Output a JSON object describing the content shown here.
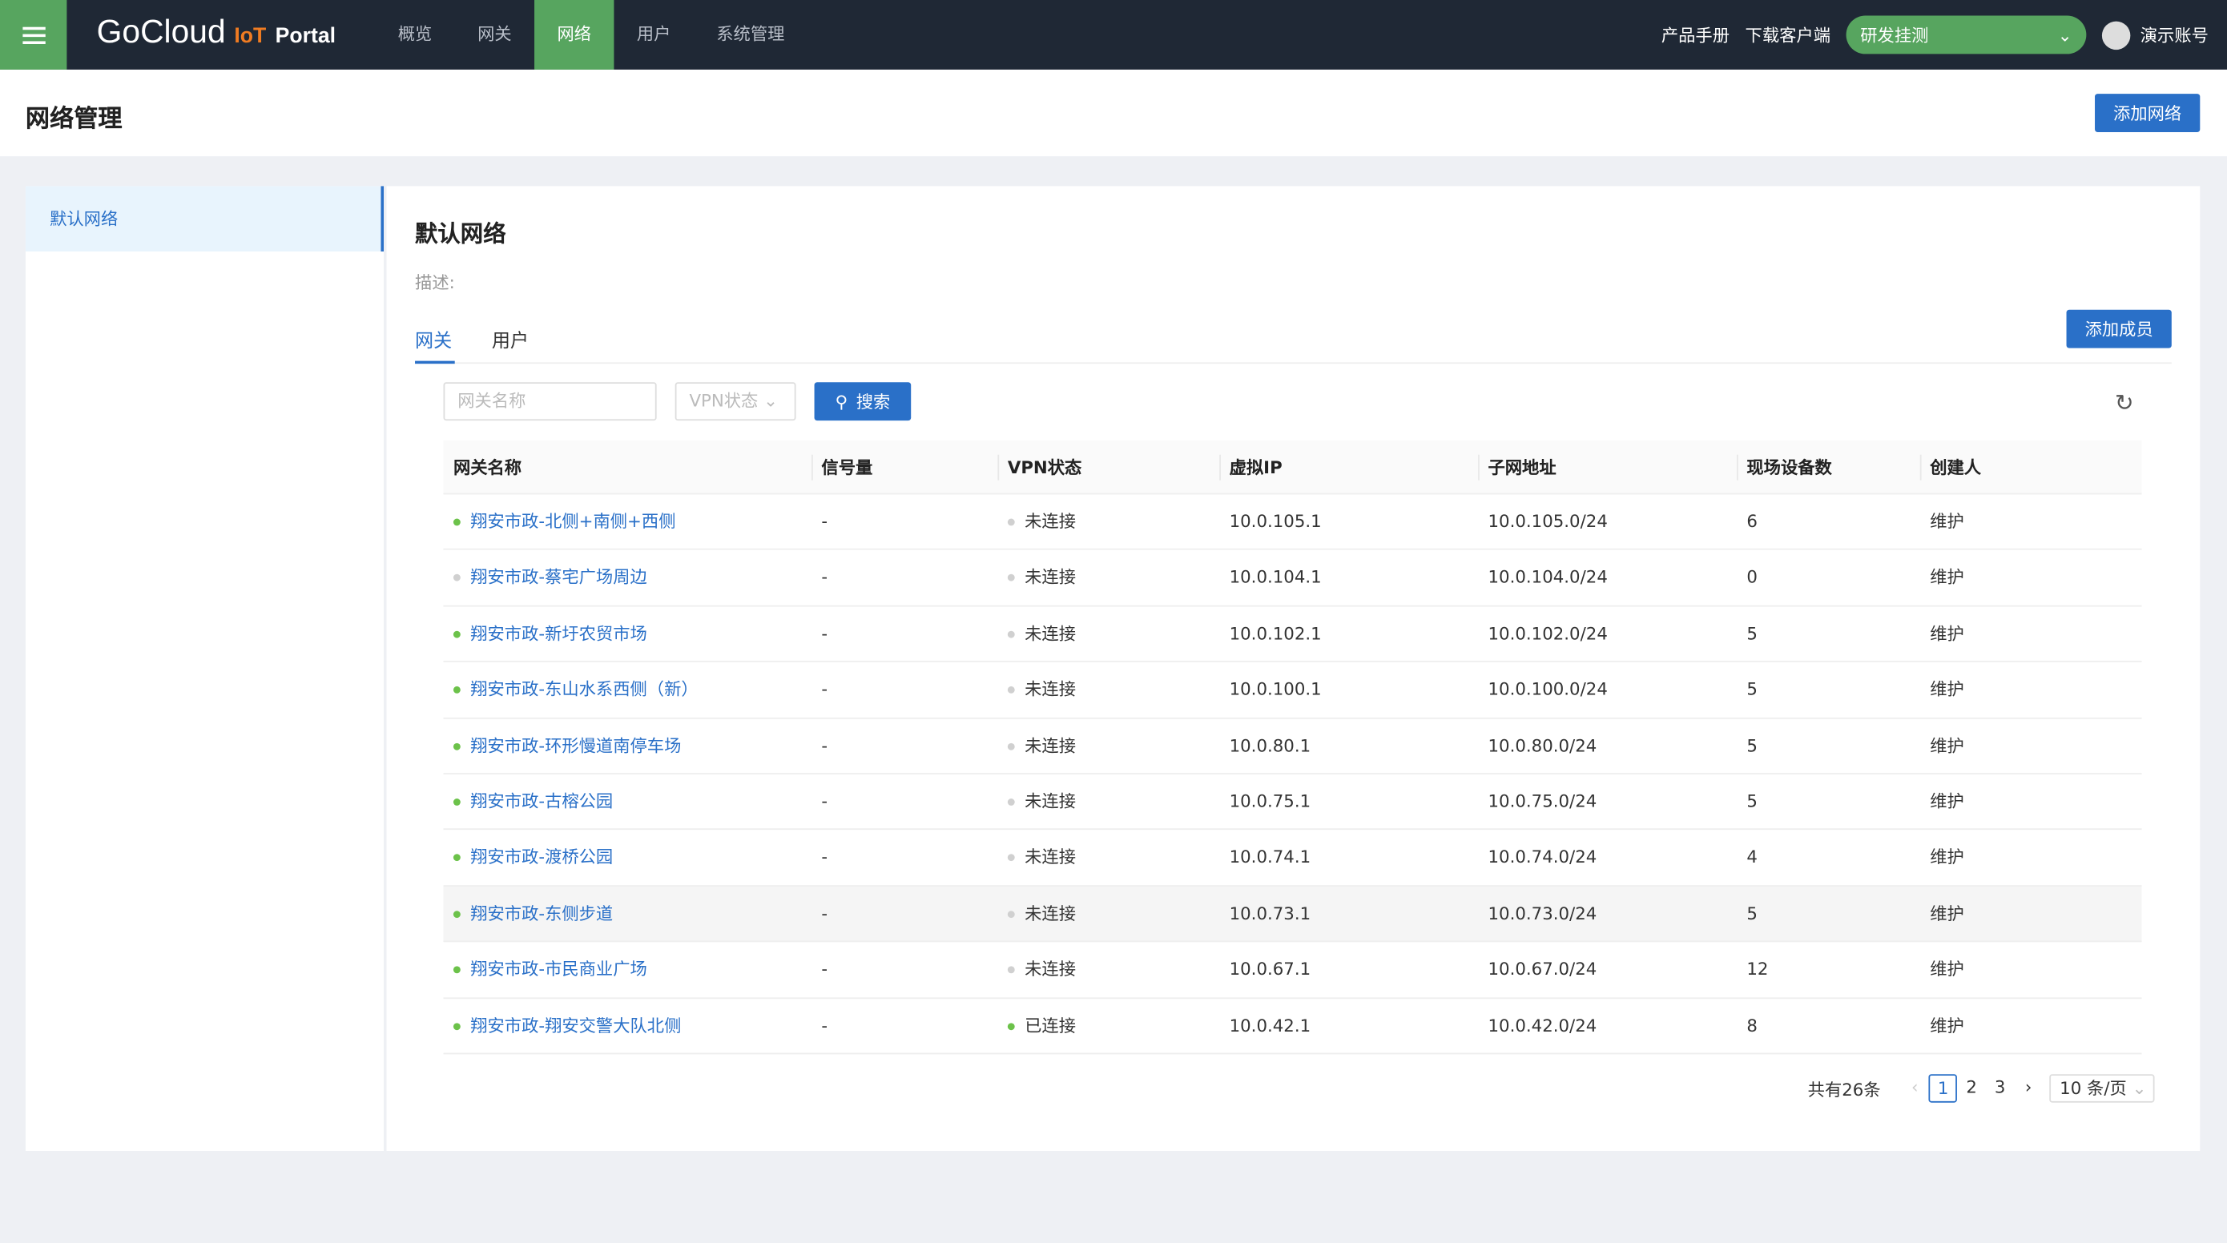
{
  "header": {
    "logo": "GoCloud",
    "logo_iot": "IoT",
    "logo_portal": "Portal",
    "nav": [
      "概览",
      "网关",
      "网络",
      "用户",
      "系统管理"
    ],
    "active_nav": 2,
    "manual": "产品手册",
    "download": "下载客户端",
    "project": "研发挂测",
    "account": "演示账号"
  },
  "page": {
    "title": "网络管理",
    "add_network": "添加网络"
  },
  "sidebar": {
    "items": [
      {
        "label": "默认网络",
        "selected": true
      }
    ]
  },
  "main": {
    "title": "默认网络",
    "description_label": "描述:",
    "tabs": [
      "网关",
      "用户"
    ],
    "add_member": "添加成员",
    "filter": {
      "name_placeholder": "网关名称",
      "vpn_placeholder": "VPN状态",
      "search": "搜索"
    },
    "columns": [
      "网关名称",
      "信号量",
      "VPN状态",
      "虚拟IP",
      "子网地址",
      "现场设备数",
      "创建人"
    ],
    "rows": [
      {
        "name": "翔安市政-北侧+南侧+西侧",
        "online": true,
        "signal": "-",
        "vpn": "未连接",
        "vpn_on": false,
        "ip": "10.0.105.1",
        "subnet": "10.0.105.0/24",
        "devices": "6",
        "creator": "维护"
      },
      {
        "name": "翔安市政-蔡宅广场周边",
        "online": false,
        "signal": "-",
        "vpn": "未连接",
        "vpn_on": false,
        "ip": "10.0.104.1",
        "subnet": "10.0.104.0/24",
        "devices": "0",
        "creator": "维护"
      },
      {
        "name": "翔安市政-新圩农贸市场",
        "online": true,
        "signal": "-",
        "vpn": "未连接",
        "vpn_on": false,
        "ip": "10.0.102.1",
        "subnet": "10.0.102.0/24",
        "devices": "5",
        "creator": "维护"
      },
      {
        "name": "翔安市政-东山水系西侧（新）",
        "online": true,
        "signal": "-",
        "vpn": "未连接",
        "vpn_on": false,
        "ip": "10.0.100.1",
        "subnet": "10.0.100.0/24",
        "devices": "5",
        "creator": "维护"
      },
      {
        "name": "翔安市政-环形慢道南停车场",
        "online": true,
        "signal": "-",
        "vpn": "未连接",
        "vpn_on": false,
        "ip": "10.0.80.1",
        "subnet": "10.0.80.0/24",
        "devices": "5",
        "creator": "维护"
      },
      {
        "name": "翔安市政-古榕公园",
        "online": true,
        "signal": "-",
        "vpn": "未连接",
        "vpn_on": false,
        "ip": "10.0.75.1",
        "subnet": "10.0.75.0/24",
        "devices": "5",
        "creator": "维护"
      },
      {
        "name": "翔安市政-渡桥公园",
        "online": true,
        "signal": "-",
        "vpn": "未连接",
        "vpn_on": false,
        "ip": "10.0.74.1",
        "subnet": "10.0.74.0/24",
        "devices": "4",
        "creator": "维护"
      },
      {
        "name": "翔安市政-东侧步道",
        "online": true,
        "signal": "-",
        "vpn": "未连接",
        "vpn_on": false,
        "ip": "10.0.73.1",
        "subnet": "10.0.73.0/24",
        "devices": "5",
        "creator": "维护"
      },
      {
        "name": "翔安市政-市民商业广场",
        "online": true,
        "signal": "-",
        "vpn": "未连接",
        "vpn_on": false,
        "ip": "10.0.67.1",
        "subnet": "10.0.67.0/24",
        "devices": "12",
        "creator": "维护"
      },
      {
        "name": "翔安市政-翔安交警大队北侧",
        "online": true,
        "signal": "-",
        "vpn": "已连接",
        "vpn_on": true,
        "ip": "10.0.42.1",
        "subnet": "10.0.42.0/24",
        "devices": "8",
        "creator": "维护"
      }
    ],
    "pagination": {
      "total": "共有26条",
      "pages": [
        "1",
        "2",
        "3"
      ],
      "current": "1",
      "page_size": "10 条/页"
    }
  },
  "colors": {
    "brand": "#57a55f",
    "primary": "#2a70c8",
    "topbar": "#1f2835",
    "online": "#6cc24a",
    "offline": "#d0d0d0"
  }
}
